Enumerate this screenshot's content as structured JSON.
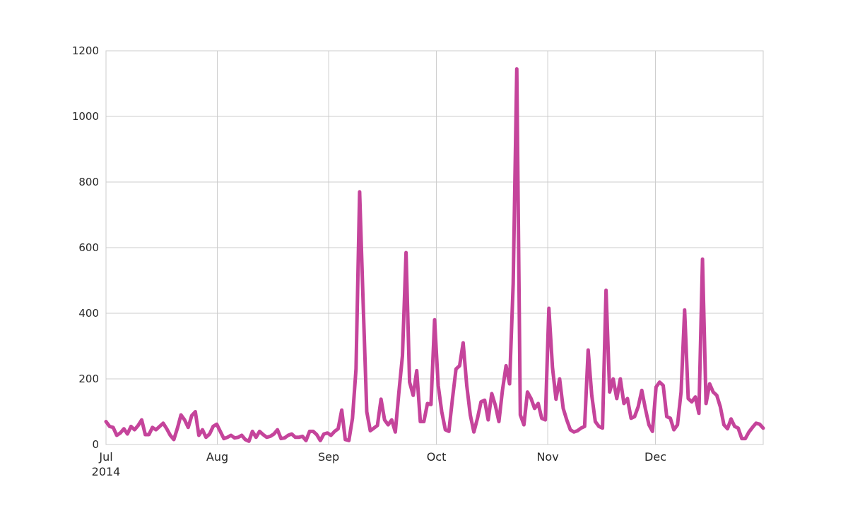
{
  "chart_data": {
    "type": "line",
    "title": "",
    "xlabel": "",
    "ylabel": "",
    "x_start": "2014-07-01",
    "x_end": "2014-12-31",
    "xlim": [
      "2014-07-01",
      "2014-12-31"
    ],
    "ylim": [
      0,
      1200
    ],
    "grid": true,
    "color": "#c5449b",
    "y_ticks": [
      "0",
      "200",
      "400",
      "600",
      "800",
      "1000",
      "1200"
    ],
    "x_ticks": [
      {
        "date": "2014-07-01",
        "label": "Jul",
        "sublabel": "2014"
      },
      {
        "date": "2014-08-01",
        "label": "Aug",
        "sublabel": ""
      },
      {
        "date": "2014-09-01",
        "label": "Sep",
        "sublabel": ""
      },
      {
        "date": "2014-10-01",
        "label": "Oct",
        "sublabel": ""
      },
      {
        "date": "2014-11-01",
        "label": "Nov",
        "sublabel": ""
      },
      {
        "date": "2014-12-01",
        "label": "Dec",
        "sublabel": ""
      }
    ],
    "values": [
      70,
      55,
      52,
      28,
      35,
      48,
      32,
      55,
      45,
      58,
      75,
      30,
      30,
      52,
      45,
      55,
      65,
      48,
      28,
      15,
      50,
      90,
      75,
      52,
      88,
      100,
      28,
      45,
      22,
      32,
      55,
      62,
      40,
      18,
      22,
      28,
      20,
      22,
      28,
      15,
      10,
      40,
      22,
      40,
      30,
      22,
      25,
      32,
      45,
      18,
      20,
      28,
      32,
      22,
      22,
      25,
      12,
      40,
      40,
      30,
      12,
      32,
      35,
      28,
      40,
      48,
      105,
      15,
      12,
      80,
      230,
      770,
      430,
      100,
      42,
      50,
      58,
      138,
      75,
      60,
      75,
      38,
      160,
      270,
      585,
      190,
      150,
      225,
      70,
      70,
      125,
      122,
      380,
      180,
      100,
      45,
      40,
      140,
      230,
      240,
      310,
      180,
      90,
      38,
      80,
      130,
      135,
      75,
      155,
      120,
      70,
      165,
      240,
      185,
      490,
      1145,
      90,
      60,
      160,
      140,
      110,
      125,
      80,
      75,
      415,
      235,
      138,
      200,
      110,
      75,
      45,
      38,
      42,
      50,
      55,
      288,
      150,
      70,
      55,
      50,
      470,
      160,
      200,
      140,
      200,
      125,
      140,
      80,
      85,
      115,
      165,
      110,
      60,
      40,
      175,
      190,
      180,
      85,
      80,
      45,
      60,
      160,
      410,
      140,
      130,
      145,
      95,
      565,
      125,
      185,
      160,
      150,
      115,
      60,
      48,
      78,
      55,
      50,
      18,
      18,
      38,
      52,
      65,
      62,
      50
    ]
  }
}
